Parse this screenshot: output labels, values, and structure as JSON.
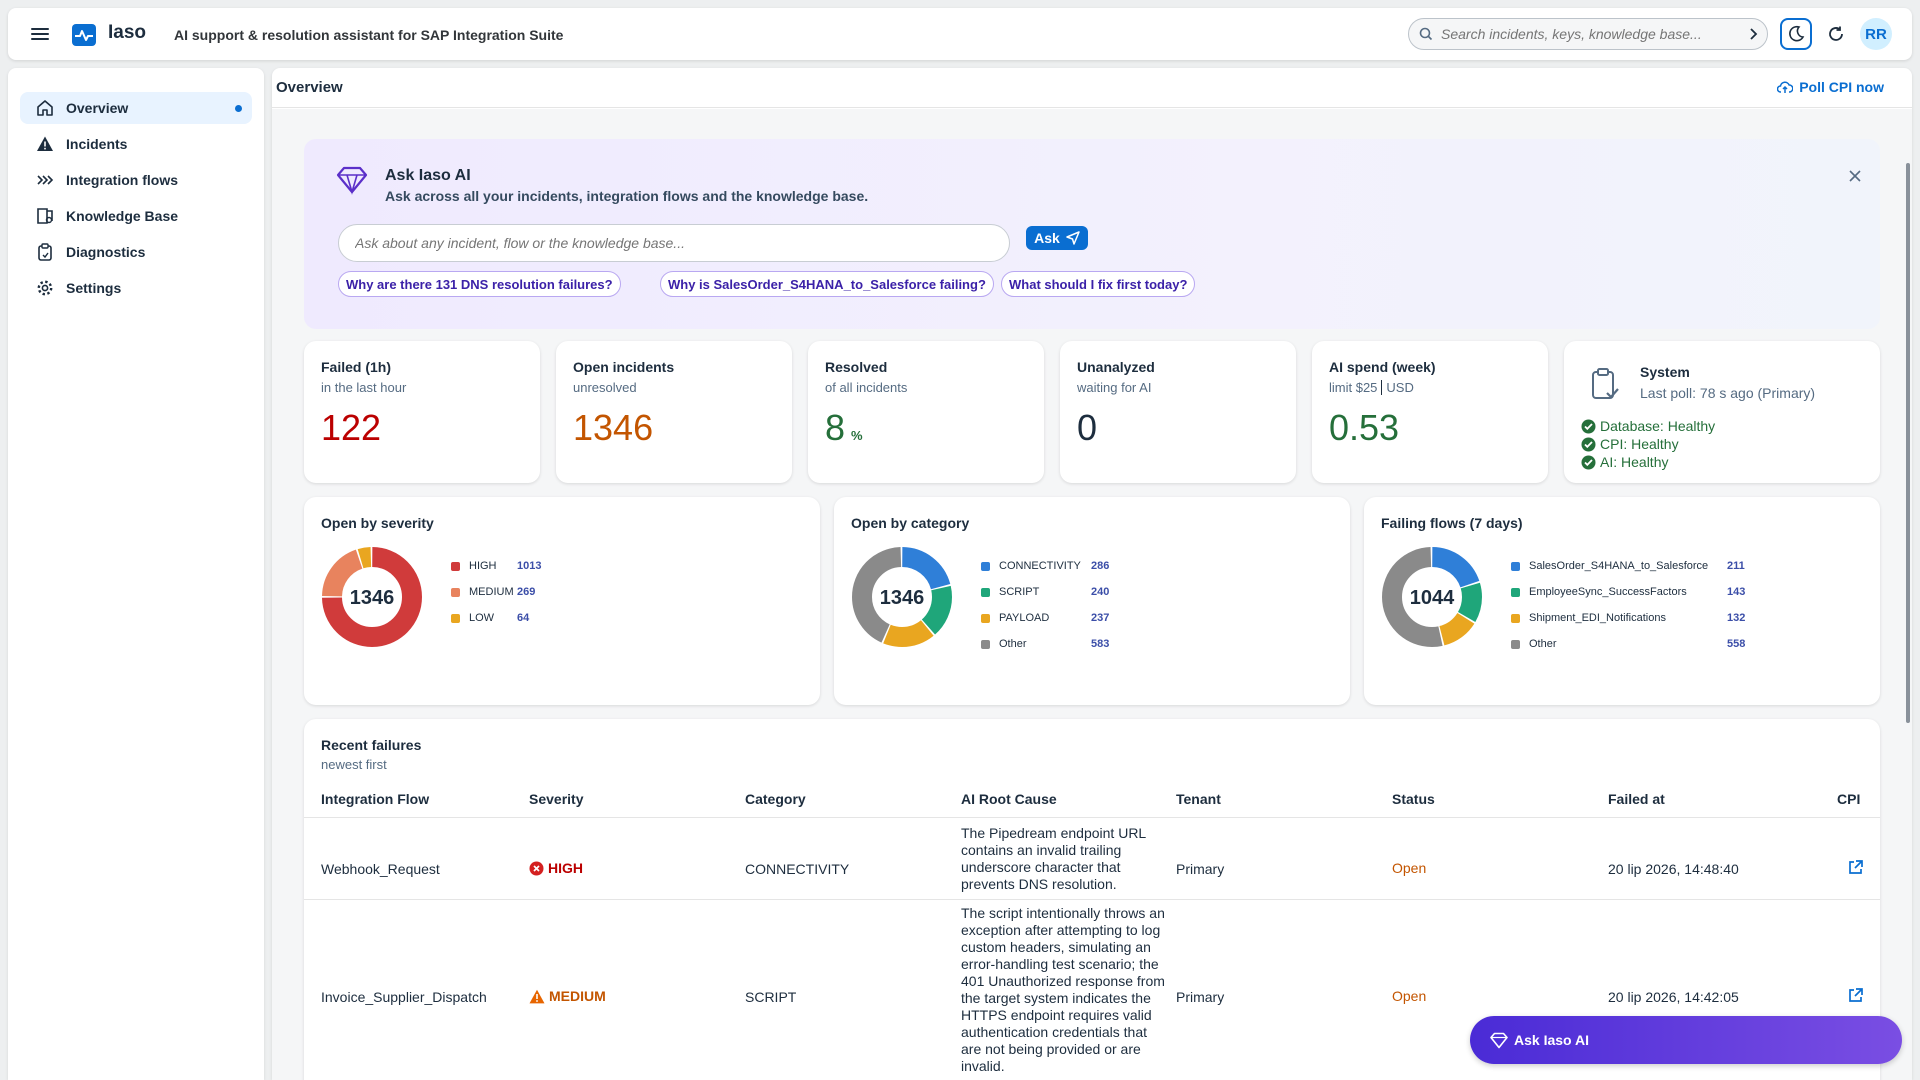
{
  "header": {
    "app_name": "Iaso",
    "subtitle": "AI support & resolution assistant for SAP Integration Suite",
    "search_placeholder": "Search incidents, keys, knowledge base...",
    "avatar_initials": "RR"
  },
  "sidebar": {
    "items": [
      {
        "label": "Overview",
        "icon": "home-icon",
        "active": true
      },
      {
        "label": "Incidents",
        "icon": "warning-icon"
      },
      {
        "label": "Integration flows",
        "icon": "flows-icon"
      },
      {
        "label": "Knowledge Base",
        "icon": "book-icon"
      },
      {
        "label": "Diagnostics",
        "icon": "clipboard-icon"
      },
      {
        "label": "Settings",
        "icon": "gear-icon"
      }
    ]
  },
  "page": {
    "title": "Overview",
    "poll_label": "Poll CPI now"
  },
  "ask_ai": {
    "title": "Ask Iaso AI",
    "subtitle": "Ask across all your incidents, integration flows and the knowledge base.",
    "placeholder": "Ask about any incident, flow or the knowledge base...",
    "ask_label": "Ask",
    "suggestions": [
      "Why are there 131 DNS resolution failures?",
      "Why is SalesOrder_S4HANA_to_Salesforce failing?",
      "What should I fix first today?"
    ]
  },
  "kpis": [
    {
      "title": "Failed (1h)",
      "sub": "in the last hour",
      "value": "122",
      "color": "#bb0000"
    },
    {
      "title": "Open incidents",
      "sub": "unresolved",
      "value": "1346",
      "color": "#c35500"
    },
    {
      "title": "Resolved",
      "sub": "of all incidents",
      "value": "8",
      "unit": "%",
      "color": "#256f3a"
    },
    {
      "title": "Unanalyzed",
      "sub": "waiting for AI",
      "value": "0",
      "color": "#1d2d3e"
    },
    {
      "title": "AI spend (week)",
      "sub_prefix": "limit $25",
      "sub_suffix": "USD",
      "value": "0.53",
      "color": "#256f3a"
    }
  ],
  "system": {
    "title": "System",
    "last_poll": "Last poll: 78 s ago (Primary)",
    "statuses": [
      "Database: Healthy",
      "CPI: Healthy",
      "AI: Healthy"
    ]
  },
  "charts": {
    "severity": {
      "title": "Open by severity",
      "total": "1346",
      "items": [
        {
          "name": "HIGH",
          "value": 1013,
          "color": "#d03b3b"
        },
        {
          "name": "MEDIUM",
          "value": 269,
          "color": "#e8835e"
        },
        {
          "name": "LOW",
          "value": 64,
          "color": "#e9a620"
        }
      ]
    },
    "category": {
      "title": "Open by category",
      "total": "1346",
      "items": [
        {
          "name": "CONNECTIVITY",
          "value": 286,
          "color": "#2f7fd8"
        },
        {
          "name": "SCRIPT",
          "value": 240,
          "color": "#1fa67a"
        },
        {
          "name": "PAYLOAD",
          "value": 237,
          "color": "#e9a620"
        },
        {
          "name": "Other",
          "value": 583,
          "color": "#8a8a8a"
        }
      ]
    },
    "flows": {
      "title": "Failing flows (7 days)",
      "total": "1044",
      "items": [
        {
          "name": "SalesOrder_S4HANA_to_Salesforce",
          "value": 211,
          "color": "#2f7fd8"
        },
        {
          "name": "EmployeeSync_SuccessFactors",
          "value": 143,
          "color": "#1fa67a"
        },
        {
          "name": "Shipment_EDI_Notifications",
          "value": 132,
          "color": "#e9a620"
        },
        {
          "name": "Other",
          "value": 558,
          "color": "#8a8a8a"
        }
      ]
    }
  },
  "recent": {
    "title": "Recent failures",
    "subtitle": "newest first",
    "columns": [
      "Integration Flow",
      "Severity",
      "Category",
      "AI Root Cause",
      "Tenant",
      "Status",
      "Failed at",
      "CPI"
    ],
    "rows": [
      {
        "flow": "Webhook_Request",
        "severity": "HIGH",
        "category": "CONNECTIVITY",
        "cause": "The Pipedream endpoint URL contains an invalid trailing underscore character that prevents DNS resolution.",
        "tenant": "Primary",
        "status": "Open",
        "failed_at": "20 lip 2026, 14:48:40"
      },
      {
        "flow": "Invoice_Supplier_Dispatch",
        "severity": "MEDIUM",
        "category": "SCRIPT",
        "cause": "The script intentionally throws an exception after attempting to log custom headers, simulating an error-handling test scenario; the 401 Unauthorized response from the target system indicates the HTTPS endpoint requires valid authentication credentials that are not being provided or are invalid.",
        "tenant": "Primary",
        "status": "Open",
        "failed_at": "20 lip 2026, 14:42:05"
      }
    ]
  },
  "fab": {
    "label": "Ask Iaso AI"
  }
}
